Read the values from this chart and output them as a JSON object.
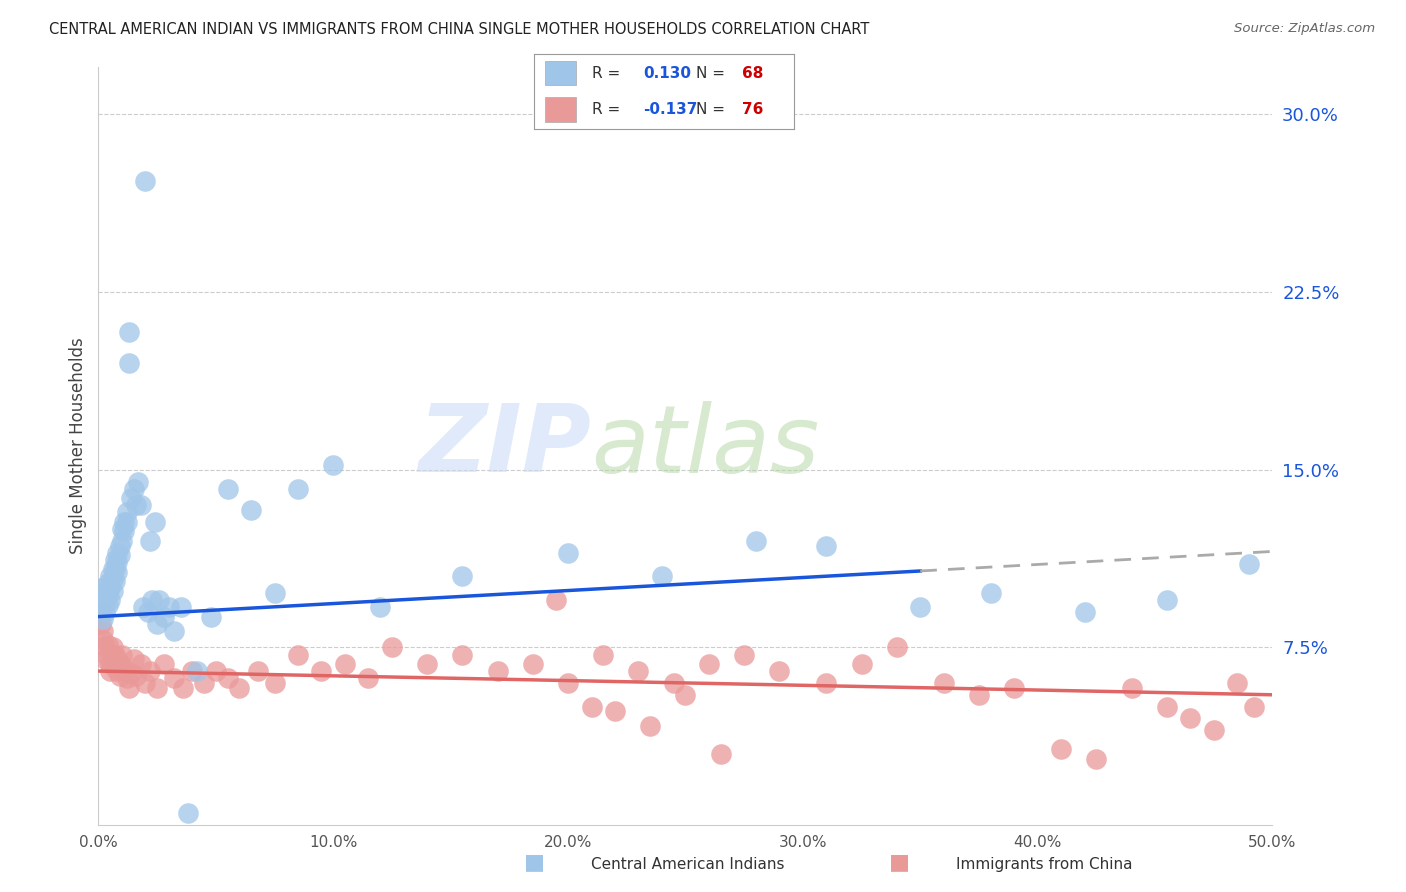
{
  "title": "CENTRAL AMERICAN INDIAN VS IMMIGRANTS FROM CHINA SINGLE MOTHER HOUSEHOLDS CORRELATION CHART",
  "source": "Source: ZipAtlas.com",
  "ylabel": "Single Mother Households",
  "xlim": [
    0.0,
    0.5
  ],
  "ylim": [
    0.0,
    0.32
  ],
  "xticks": [
    0.0,
    0.1,
    0.2,
    0.3,
    0.4,
    0.5
  ],
  "xtick_labels": [
    "0.0%",
    "10.0%",
    "20.0%",
    "30.0%",
    "40.0%",
    "50.0%"
  ],
  "yticks_right": [
    0.075,
    0.15,
    0.225,
    0.3
  ],
  "ytick_labels_right": [
    "7.5%",
    "15.0%",
    "22.5%",
    "30.0%"
  ],
  "blue_color": "#9fc5e8",
  "pink_color": "#ea9999",
  "blue_line_color": "#1a56db",
  "pink_line_color": "#e06666",
  "blue_label": "Central American Indians",
  "pink_label": "Immigrants from China",
  "blue_R": "0.130",
  "blue_N": "68",
  "pink_R": "-0.137",
  "pink_N": "76",
  "legend_R_color": "#1a56db",
  "legend_N_color": "#cc0000",
  "watermark_zip": "ZIP",
  "watermark_atlas": "atlas",
  "watermark_color_zip": "#c9daf8",
  "watermark_color_atlas": "#b6d7a8",
  "blue_x": [
    0.001,
    0.001,
    0.002,
    0.002,
    0.003,
    0.003,
    0.003,
    0.004,
    0.004,
    0.004,
    0.005,
    0.005,
    0.005,
    0.006,
    0.006,
    0.006,
    0.007,
    0.007,
    0.007,
    0.008,
    0.008,
    0.008,
    0.009,
    0.009,
    0.01,
    0.01,
    0.011,
    0.011,
    0.012,
    0.012,
    0.013,
    0.013,
    0.014,
    0.015,
    0.016,
    0.017,
    0.018,
    0.019,
    0.02,
    0.021,
    0.022,
    0.023,
    0.024,
    0.025,
    0.026,
    0.028,
    0.03,
    0.032,
    0.035,
    0.038,
    0.042,
    0.048,
    0.055,
    0.065,
    0.075,
    0.085,
    0.1,
    0.12,
    0.155,
    0.2,
    0.24,
    0.28,
    0.31,
    0.35,
    0.38,
    0.42,
    0.455,
    0.49
  ],
  "blue_y": [
    0.095,
    0.1,
    0.092,
    0.087,
    0.098,
    0.094,
    0.09,
    0.102,
    0.098,
    0.093,
    0.105,
    0.1,
    0.095,
    0.108,
    0.104,
    0.099,
    0.112,
    0.108,
    0.103,
    0.115,
    0.111,
    0.107,
    0.118,
    0.114,
    0.125,
    0.12,
    0.128,
    0.124,
    0.132,
    0.128,
    0.195,
    0.208,
    0.138,
    0.142,
    0.135,
    0.145,
    0.135,
    0.092,
    0.272,
    0.09,
    0.12,
    0.095,
    0.128,
    0.085,
    0.095,
    0.088,
    0.092,
    0.082,
    0.092,
    0.005,
    0.065,
    0.088,
    0.142,
    0.133,
    0.098,
    0.142,
    0.152,
    0.092,
    0.105,
    0.115,
    0.105,
    0.12,
    0.118,
    0.092,
    0.098,
    0.09,
    0.095,
    0.11
  ],
  "pink_x": [
    0.001,
    0.001,
    0.002,
    0.002,
    0.003,
    0.003,
    0.004,
    0.004,
    0.005,
    0.005,
    0.006,
    0.006,
    0.007,
    0.007,
    0.008,
    0.008,
    0.009,
    0.009,
    0.01,
    0.01,
    0.011,
    0.012,
    0.013,
    0.014,
    0.015,
    0.016,
    0.018,
    0.02,
    0.022,
    0.025,
    0.028,
    0.032,
    0.036,
    0.04,
    0.045,
    0.05,
    0.055,
    0.06,
    0.068,
    0.075,
    0.085,
    0.095,
    0.105,
    0.115,
    0.125,
    0.14,
    0.155,
    0.17,
    0.185,
    0.2,
    0.215,
    0.23,
    0.245,
    0.26,
    0.275,
    0.29,
    0.31,
    0.325,
    0.34,
    0.36,
    0.375,
    0.39,
    0.41,
    0.425,
    0.44,
    0.455,
    0.465,
    0.475,
    0.485,
    0.492,
    0.195,
    0.21,
    0.22,
    0.235,
    0.25,
    0.265
  ],
  "pink_y": [
    0.09,
    0.085,
    0.082,
    0.078,
    0.075,
    0.07,
    0.076,
    0.071,
    0.068,
    0.065,
    0.075,
    0.07,
    0.072,
    0.067,
    0.07,
    0.065,
    0.068,
    0.063,
    0.072,
    0.067,
    0.065,
    0.062,
    0.058,
    0.064,
    0.07,
    0.063,
    0.068,
    0.06,
    0.065,
    0.058,
    0.068,
    0.062,
    0.058,
    0.065,
    0.06,
    0.065,
    0.062,
    0.058,
    0.065,
    0.06,
    0.072,
    0.065,
    0.068,
    0.062,
    0.075,
    0.068,
    0.072,
    0.065,
    0.068,
    0.06,
    0.072,
    0.065,
    0.06,
    0.068,
    0.072,
    0.065,
    0.06,
    0.068,
    0.075,
    0.06,
    0.055,
    0.058,
    0.032,
    0.028,
    0.058,
    0.05,
    0.045,
    0.04,
    0.06,
    0.05,
    0.095,
    0.05,
    0.048,
    0.042,
    0.055,
    0.03
  ]
}
